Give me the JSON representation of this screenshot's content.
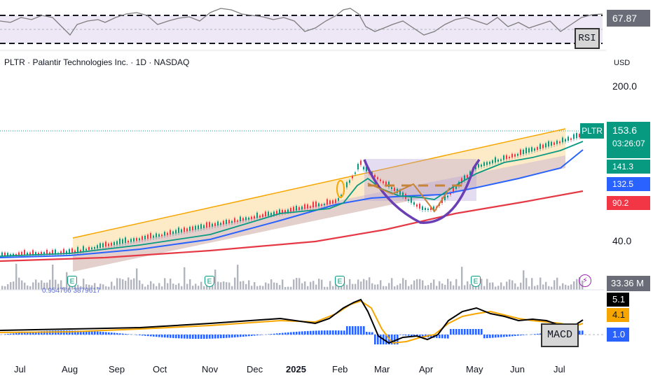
{
  "symbol_header": "PLTR · Palantir Technologies Inc. · 1D · NASDAQ",
  "currency": "USD",
  "price_axis": {
    "label_200": "200.0",
    "label_40": "40.0"
  },
  "ticker_tag": "PLTR",
  "current_price": "153.6",
  "countdown": "03:26:07",
  "ma_tags": [
    {
      "value": "141.3",
      "color": "#089981"
    },
    {
      "value": "132.5",
      "color": "#2962ff"
    },
    {
      "value": "90.2",
      "color": "#f23645"
    }
  ],
  "rsi": {
    "value": "67.87",
    "annotation": "RSI"
  },
  "volume": {
    "value": "33.36 M",
    "info": "0.954766  3879617"
  },
  "macd": {
    "annotation": "MACD",
    "values": [
      {
        "value": "5.1",
        "bg": "#000000",
        "fg": "#ffffff"
      },
      {
        "value": "4.1",
        "bg": "#f7a600",
        "fg": "#131722"
      },
      {
        "value": "1.0",
        "bg": "#2962ff",
        "fg": "#ffffff"
      }
    ]
  },
  "months": [
    "Jul",
    "Aug",
    "Sep",
    "Oct",
    "Nov",
    "Dec",
    "2025",
    "Feb",
    "Mar",
    "Apr",
    "May",
    "Jun",
    "Jul"
  ],
  "earnings_marker": "E",
  "colors": {
    "up": "#089981",
    "down": "#f23645",
    "channel": "#f7a600",
    "cup": "#6a3fb3",
    "ma_long": "#e53945"
  }
}
